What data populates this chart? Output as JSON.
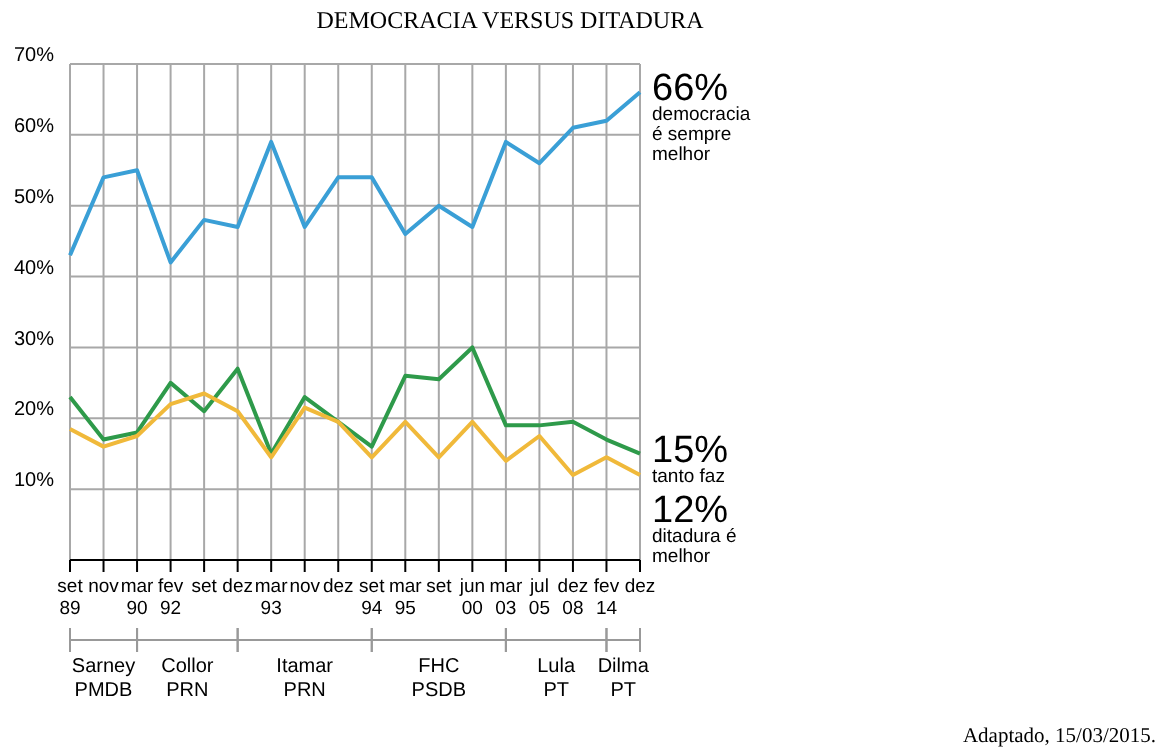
{
  "chart_data": {
    "type": "line",
    "title": "DEMOCRACIA VERSUS DITADURA",
    "categories": [
      "set 89",
      "nov",
      "mar 90",
      "fev 92",
      "set",
      "dez",
      "mar 93",
      "nov",
      "dez",
      "set 94",
      "mar 95",
      "set",
      "jun 00",
      "mar 03",
      "jul 05",
      "dez 08",
      "fev 14",
      "dez"
    ],
    "series": [
      {
        "name": "democracia é sempre melhor",
        "color": "#3a9fd6",
        "values": [
          43,
          54,
          55,
          42,
          48,
          47,
          59,
          47,
          54,
          54,
          46,
          50,
          47,
          59,
          56,
          61,
          62,
          66
        ],
        "value_labels": [
          null,
          null,
          null,
          null,
          null,
          null,
          null,
          null,
          null,
          null,
          null,
          null,
          null,
          null,
          null,
          null,
          null,
          "66%"
        ]
      },
      {
        "name": "tanto faz",
        "color": "#2e9a4a",
        "values": [
          23,
          17,
          18,
          25,
          21,
          27,
          15,
          23,
          19.5,
          16,
          26,
          25.5,
          30,
          19,
          19,
          19.5,
          17,
          15
        ],
        "value_labels": [
          null,
          null,
          null,
          null,
          null,
          null,
          null,
          null,
          null,
          null,
          null,
          null,
          null,
          null,
          null,
          null,
          null,
          "15%"
        ]
      },
      {
        "name": "ditadura é melhor",
        "color": "#f0b93a",
        "values": [
          18.5,
          16,
          17.5,
          22,
          23.5,
          21,
          14.5,
          21.5,
          19.5,
          14.5,
          19.5,
          14.5,
          19.5,
          14,
          17.5,
          12,
          14.5,
          12
        ],
        "value_labels": [
          null,
          null,
          null,
          null,
          null,
          null,
          null,
          null,
          null,
          null,
          null,
          null,
          null,
          null,
          null,
          null,
          null,
          "12%"
        ]
      }
    ],
    "ylim": [
      0,
      70
    ],
    "yticks": [
      {
        "value": 10,
        "label": "10%"
      },
      {
        "value": 20,
        "label": "20%"
      },
      {
        "value": 30,
        "label": "30%"
      },
      {
        "value": 40,
        "label": "40%"
      },
      {
        "value": 50,
        "label": "50%"
      },
      {
        "value": 60,
        "label": "60%"
      },
      {
        "value": 70,
        "label": "70%"
      }
    ],
    "grid": true,
    "legend": false,
    "marker": "none",
    "line_style": "solid",
    "annotations": [
      "Sarney PMDB",
      "Collor PRN",
      "Itamar PRN",
      "FHC PSDB",
      "Lula PT",
      "Dilma PT",
      "Adaptado, 15/03/2015."
    ]
  }
}
